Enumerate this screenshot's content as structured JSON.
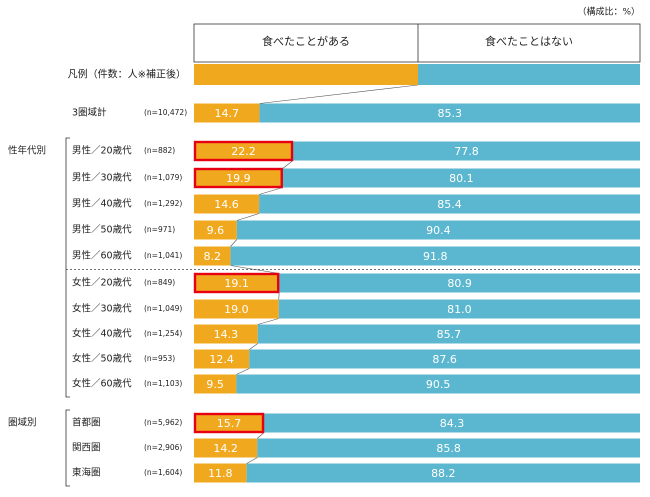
{
  "chart_data": {
    "type": "bar",
    "stacked": true,
    "unit_note": "（構成比：%）",
    "legend_label": "凡例（件数：人※補正後）",
    "series": [
      {
        "name": "食べたことがある",
        "color": "#f0a81e"
      },
      {
        "name": "食べたことはない",
        "color": "#5bb6cf"
      }
    ],
    "groups": [
      {
        "label": "",
        "rows": [
          {
            "label": "3圏域計",
            "n": "(n=10,472)",
            "values": [
              14.7,
              85.3
            ],
            "highlight": false
          }
        ]
      },
      {
        "label": "性年代別",
        "rows": [
          {
            "label": "男性／20歳代",
            "n": "(n=882)",
            "values": [
              22.2,
              77.8
            ],
            "highlight": true
          },
          {
            "label": "男性／30歳代",
            "n": "(n=1,079)",
            "values": [
              19.9,
              80.1
            ],
            "highlight": true
          },
          {
            "label": "男性／40歳代",
            "n": "(n=1,292)",
            "values": [
              14.6,
              85.4
            ],
            "highlight": false
          },
          {
            "label": "男性／50歳代",
            "n": "(n=971)",
            "values": [
              9.6,
              90.4
            ],
            "highlight": false
          },
          {
            "label": "男性／60歳代",
            "n": "(n=1,041)",
            "values": [
              8.2,
              91.8
            ],
            "highlight": false
          },
          {
            "label": "女性／20歳代",
            "n": "(n=849)",
            "values": [
              19.1,
              80.9
            ],
            "highlight": true
          },
          {
            "label": "女性／30歳代",
            "n": "(n=1,049)",
            "values": [
              19.0,
              81.0
            ],
            "highlight": false
          },
          {
            "label": "女性／40歳代",
            "n": "(n=1,254)",
            "values": [
              14.3,
              85.7
            ],
            "highlight": false
          },
          {
            "label": "女性／50歳代",
            "n": "(n=953)",
            "values": [
              12.4,
              87.6
            ],
            "highlight": false
          },
          {
            "label": "女性／60歳代",
            "n": "(n=1,103)",
            "values": [
              9.5,
              90.5
            ],
            "highlight": false
          }
        ]
      },
      {
        "label": "圏域別",
        "rows": [
          {
            "label": "首都圏",
            "n": "(n=5,962)",
            "values": [
              15.7,
              84.3
            ],
            "highlight": true
          },
          {
            "label": "関西圏",
            "n": "(n=2,906)",
            "values": [
              14.2,
              85.8
            ],
            "highlight": false
          },
          {
            "label": "東海圏",
            "n": "(n=1,604)",
            "values": [
              11.8,
              88.2
            ],
            "highlight": false
          }
        ]
      }
    ],
    "highlight_color": "#e60012"
  }
}
